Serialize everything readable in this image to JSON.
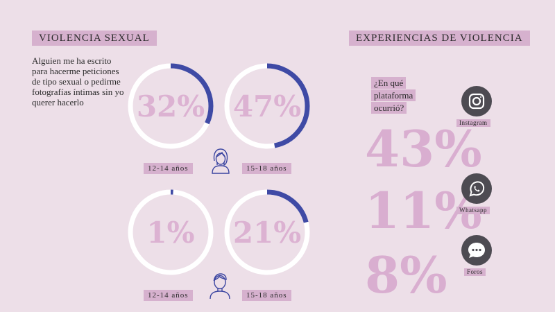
{
  "left": {
    "title": "VIOLENCIA SEXUAL",
    "question": "Alguien me ha escrito para hacerme peticiones de tipo sexual o pedirme fotografías íntimas sin yo querer hacerlo",
    "rings": [
      {
        "value": 32,
        "label": "32%",
        "age": "12-14 años",
        "gender": "girl"
      },
      {
        "value": 47,
        "label": "47%",
        "age": "15-18 años",
        "gender": "girl"
      },
      {
        "value": 1,
        "label": "1%",
        "age": "12-14 años",
        "gender": "boy"
      },
      {
        "value": 21,
        "label": "21%",
        "age": "15-18 años",
        "gender": "boy"
      }
    ]
  },
  "right": {
    "title": "EXPERIENCIAS DE VIOLENCIA",
    "question_lines": [
      "¿En qué",
      "plataforma",
      "ocurrió?"
    ],
    "platforms": [
      {
        "percent": "43%",
        "name": "Instagram",
        "icon": "instagram-icon"
      },
      {
        "percent": "11%",
        "name": "Whatsapp",
        "icon": "whatsapp-icon"
      },
      {
        "percent": "8%",
        "name": "Foros",
        "icon": "chat-bubble-icon"
      }
    ]
  },
  "colors": {
    "background": "#eddfe8",
    "label_bg": "#d6b1ce",
    "ring_fill": "#3f4aa5",
    "ring_track": "#ffffff",
    "big_number": "#d9aed0",
    "icon_circle": "#4d4b52",
    "person_icon": "#3a44a0"
  }
}
